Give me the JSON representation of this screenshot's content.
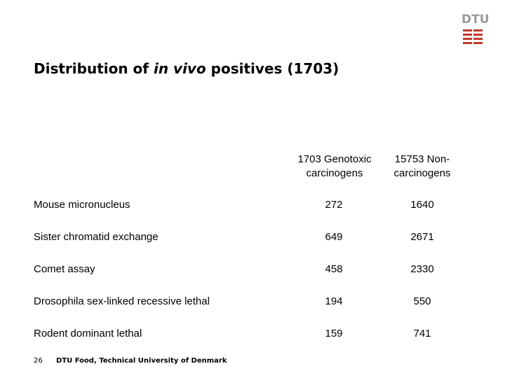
{
  "logo": {
    "text": "DTU",
    "color": "#9a9a9a",
    "mark_color": "#c0392b"
  },
  "title": {
    "before": "Distribution of ",
    "italic": "in vivo",
    "after": " positives (1703)"
  },
  "columns": [
    {
      "line1": "1703 Genotoxic",
      "line2": "carcinogens"
    },
    {
      "line1": "15753 Non-",
      "line2": "carcinogens"
    }
  ],
  "rows": [
    {
      "label": "Mouse micronucleus",
      "genotoxic": "272",
      "non": "1640"
    },
    {
      "label": "Sister chromatid exchange",
      "genotoxic": "649",
      "non": "2671"
    },
    {
      "label": "Comet assay",
      "genotoxic": "458",
      "non": "2330"
    },
    {
      "label": "Drosophila sex-linked recessive lethal",
      "genotoxic": "194",
      "non": "550"
    },
    {
      "label": "Rodent dominant lethal",
      "genotoxic": "159",
      "non": "741"
    }
  ],
  "footer": {
    "page": "26",
    "text": "DTU Food, Technical University of Denmark"
  }
}
